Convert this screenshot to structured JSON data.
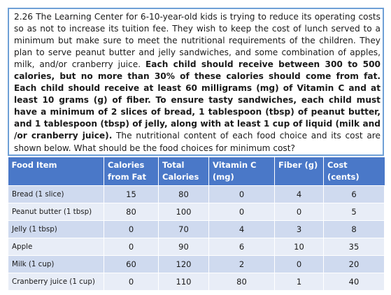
{
  "problem": {
    "segments": [
      {
        "text": "2.26 The Learning Center for 6-10-year-old kids is trying to reduce its operating costs so as not to increase its tuition fee. They wish to keep the cost of lunch served to a minimum but make sure to meet the nutritional requirements of the children. They plan to serve peanut butter and jelly sandwiches, and some combination of apples, milk, and/or cranberry juice. ",
        "bold": false
      },
      {
        "text": "Each child should receive between 300 to 500 calories, but no more than 30% of these calories should come from fat. Each child should receive at least 60 milligrams (mg) of Vitamin C and at least 10 grams (g) of fiber. To ensure tasty sandwiches, each child must have a minimum of 2 slices of bread, 1 tablespoon (tbsp) of peanut butter, and 1 tablespoon (tbsp) of jelly, along with at least 1 cup of liquid (milk and /or cranberry juice).",
        "bold": true
      },
      {
        "text": " The nutritional content of each food choice and its cost are shown below. What should be the food choices for minimum cost?",
        "bold": false
      }
    ]
  },
  "table": {
    "headers": [
      "Food Item",
      "Calories from Fat",
      "Total Calories",
      "Vitamin C (mg)",
      "Fiber (g)",
      "Cost (cents)"
    ],
    "rows": [
      [
        "Bread (1 slice)",
        "15",
        "80",
        "0",
        "4",
        "6"
      ],
      [
        "Peanut butter (1 tbsp)",
        "80",
        "100",
        "0",
        "0",
        "5"
      ],
      [
        "Jelly (1 tbsp)",
        "0",
        "70",
        "4",
        "3",
        "8"
      ],
      [
        "Apple",
        "0",
        "90",
        "6",
        "10",
        "35"
      ],
      [
        "Milk (1 cup)",
        "60",
        "120",
        "2",
        "0",
        "20"
      ],
      [
        "Cranberry juice (1 cup)",
        "0",
        "110",
        "80",
        "1",
        "40"
      ]
    ]
  },
  "colors": {
    "header_bg": "#4a78c8",
    "row_odd": "#cfdaef",
    "row_even": "#e8edf7",
    "box_border": "#6fa0d6"
  }
}
